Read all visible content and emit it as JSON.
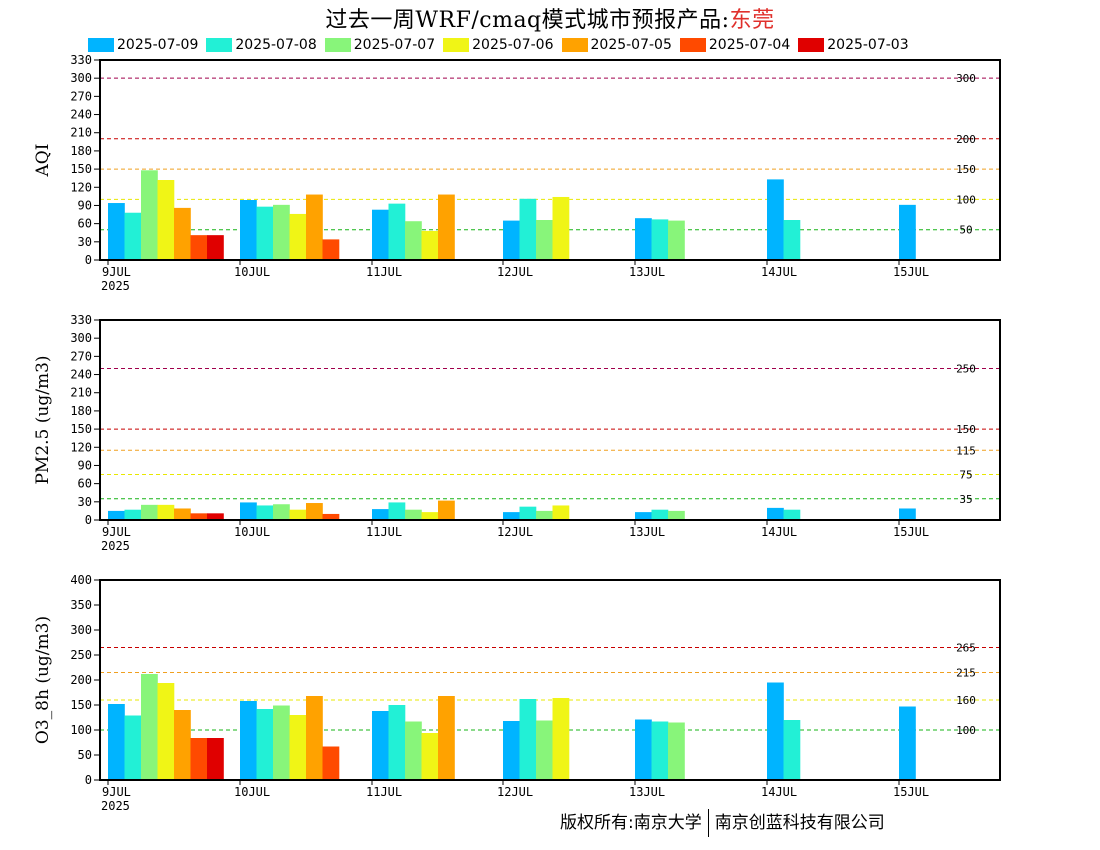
{
  "header": {
    "title_prefix": "过去一周WRF/cmaq模式城市预报产品:",
    "city": "东莞"
  },
  "footer": {
    "left": "版权所有:南京大学",
    "right": "南京创蓝科技有限公司"
  },
  "colors": {
    "series": [
      "#00b4ff",
      "#22f0d6",
      "#88f57a",
      "#f0f516",
      "#ffa200",
      "#ff4a00",
      "#e00000"
    ],
    "level_lines": {
      "green": "#17b417",
      "yellow": "#e8e800",
      "orange": "#f0a020",
      "red": "#c80000",
      "purple": "#a0004c"
    }
  },
  "chart_data": [
    {
      "type": "bar",
      "ylabel": "AQI",
      "ylim": [
        0,
        330
      ],
      "yticks": [
        0,
        30,
        60,
        90,
        120,
        150,
        180,
        210,
        240,
        270,
        300,
        330
      ],
      "x_tick_labels": [
        "9JUL",
        "10JUL",
        "11JUL",
        "12JUL",
        "13JUL",
        "14JUL",
        "15JUL"
      ],
      "x_sub_label": "2025",
      "series_names": [
        "2025-07-09",
        "2025-07-08",
        "2025-07-07",
        "2025-07-06",
        "2025-07-05",
        "2025-07-04",
        "2025-07-03"
      ],
      "groups": [
        [
          94,
          78,
          148,
          132,
          86,
          41,
          41
        ],
        [
          99,
          88,
          91,
          76,
          108,
          34
        ],
        [
          83,
          93,
          64,
          48,
          108
        ],
        [
          65,
          101,
          66,
          104
        ],
        [
          69,
          67,
          65
        ],
        [
          133,
          66
        ],
        [
          91
        ]
      ],
      "ref_lines": [
        {
          "value": 300,
          "label": "300",
          "color": "purple"
        },
        {
          "value": 200,
          "label": "200",
          "color": "red"
        },
        {
          "value": 150,
          "label": "150",
          "color": "orange"
        },
        {
          "value": 100,
          "label": "100",
          "color": "yellow"
        },
        {
          "value": 50,
          "label": "50",
          "color": "green"
        }
      ]
    },
    {
      "type": "bar",
      "ylabel": "PM2.5 (ug/m3)",
      "ylim": [
        0,
        330
      ],
      "yticks": [
        0,
        30,
        60,
        90,
        120,
        150,
        180,
        210,
        240,
        270,
        300,
        330
      ],
      "x_tick_labels": [
        "9JUL",
        "10JUL",
        "11JUL",
        "12JUL",
        "13JUL",
        "14JUL",
        "15JUL"
      ],
      "x_sub_label": "2025",
      "series_names": [
        "2025-07-09",
        "2025-07-08",
        "2025-07-07",
        "2025-07-06",
        "2025-07-05",
        "2025-07-04",
        "2025-07-03"
      ],
      "groups": [
        [
          15,
          17,
          25,
          25,
          19,
          11,
          11
        ],
        [
          29,
          24,
          26,
          17,
          28,
          10
        ],
        [
          18,
          29,
          17,
          13,
          32
        ],
        [
          13,
          22,
          15,
          24
        ],
        [
          13,
          17,
          15
        ],
        [
          20,
          17
        ],
        [
          19
        ]
      ],
      "ref_lines": [
        {
          "value": 250,
          "label": "250",
          "color": "purple"
        },
        {
          "value": 150,
          "label": "150",
          "color": "red"
        },
        {
          "value": 115,
          "label": "115",
          "color": "orange"
        },
        {
          "value": 75,
          "label": "75",
          "color": "yellow"
        },
        {
          "value": 35,
          "label": "35",
          "color": "green"
        }
      ]
    },
    {
      "type": "bar",
      "ylabel": "O3_8h (ug/m3)",
      "ylim": [
        0,
        400
      ],
      "yticks": [
        0,
        50,
        100,
        150,
        200,
        250,
        300,
        350,
        400
      ],
      "x_tick_labels": [
        "9JUL",
        "10JUL",
        "11JUL",
        "12JUL",
        "13JUL",
        "14JUL",
        "15JUL"
      ],
      "x_sub_label": "2025",
      "series_names": [
        "2025-07-09",
        "2025-07-08",
        "2025-07-07",
        "2025-07-06",
        "2025-07-05",
        "2025-07-04",
        "2025-07-03"
      ],
      "groups": [
        [
          152,
          129,
          212,
          194,
          140,
          84,
          84
        ],
        [
          158,
          142,
          149,
          130,
          168,
          67
        ],
        [
          138,
          150,
          117,
          94,
          168
        ],
        [
          118,
          162,
          119,
          164
        ],
        [
          121,
          117,
          115
        ],
        [
          195,
          120
        ],
        [
          147
        ]
      ],
      "ref_lines": [
        {
          "value": 265,
          "label": "265",
          "color": "red"
        },
        {
          "value": 215,
          "label": "215",
          "color": "orange"
        },
        {
          "value": 160,
          "label": "160",
          "color": "yellow"
        },
        {
          "value": 100,
          "label": "100",
          "color": "green"
        }
      ]
    }
  ]
}
